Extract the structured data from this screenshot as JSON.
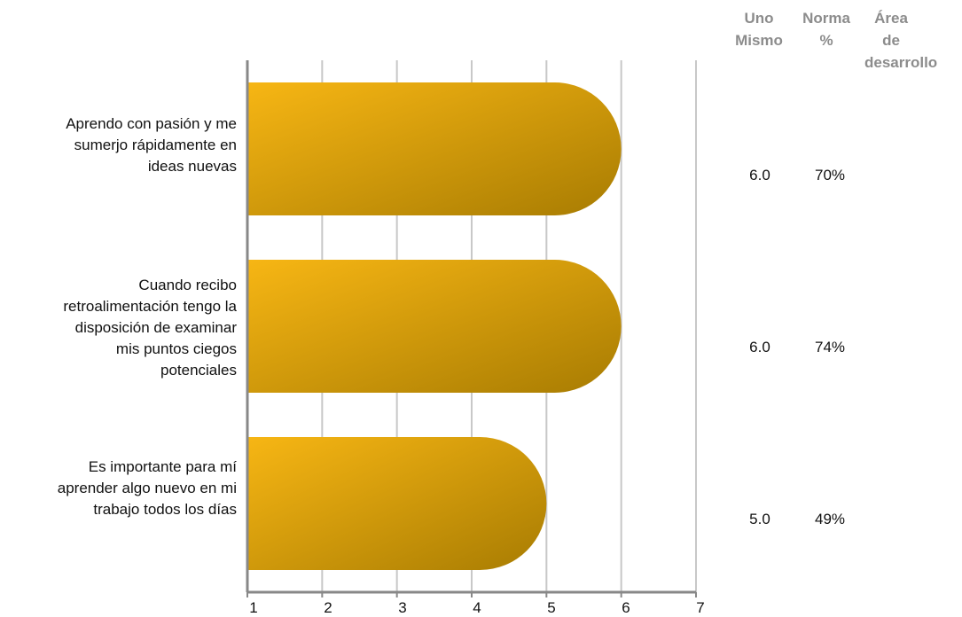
{
  "chart_data": {
    "type": "bar",
    "orientation": "horizontal",
    "categories": [
      "Aprendo con pasión y me sumerjo rápidamente en ideas nuevas",
      "Cuando recibo retroalimentación tengo la disposición de examinar mis puntos ciegos potenciales",
      "Es importante para mí aprender algo nuevo en mi trabajo todos los días"
    ],
    "category_lines": [
      [
        "Aprendo con pasión y me",
        "sumerjo rápidamente en",
        "ideas nuevas"
      ],
      [
        "Cuando recibo",
        "retroalimentación tengo la",
        "disposición de examinar",
        "mis puntos ciegos",
        "potenciales"
      ],
      [
        "Es importante para mí",
        "aprender algo nuevo en mi",
        "trabajo todos los días"
      ]
    ],
    "values": [
      6.0,
      6.0,
      5.0
    ],
    "xlim": [
      1,
      7
    ],
    "xticks": [
      "1",
      "2",
      "3",
      "4",
      "5",
      "6",
      "7"
    ],
    "grid": true,
    "bar_color_start": "#f7b614",
    "bar_color_end": "#a87c02",
    "columns": {
      "uno_mismo": [
        "6.0",
        "6.0",
        "5.0"
      ],
      "norma": [
        "70%",
        "74%",
        "49%"
      ]
    }
  },
  "table_headers": {
    "uno_mismo": [
      "Uno",
      "Mismo"
    ],
    "norma": [
      "Norma",
      "%"
    ],
    "area": [
      "Área",
      "de",
      "desarrollo"
    ]
  }
}
